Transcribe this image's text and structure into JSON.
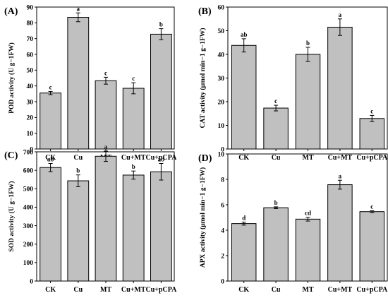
{
  "chart_data": [
    {
      "type": "bar",
      "panel_label": "(A)",
      "ylabel": "POD activity (U g−1FW)",
      "categories": [
        "CK",
        "Cu",
        "MT",
        "Cu+MT",
        "Cu+pCPA"
      ],
      "values": [
        35.5,
        83.5,
        43.3,
        38.5,
        72.8
      ],
      "errors": [
        1.0,
        2.8,
        2.2,
        3.5,
        3.5
      ],
      "significance": [
        "c",
        "a",
        "c",
        "c",
        "b"
      ],
      "ylim": [
        0,
        90
      ],
      "yticks": [
        0,
        10,
        20,
        30,
        40,
        50,
        60,
        70,
        80,
        90
      ]
    },
    {
      "type": "bar",
      "panel_label": "(B)",
      "ylabel": "CAT activity (μmol min−1 g−1FW)",
      "categories": [
        "CK",
        "Cu",
        "MT",
        "Cu+MT",
        "Cu+pCPA"
      ],
      "values": [
        43.8,
        17.3,
        40.0,
        51.5,
        12.9
      ],
      "errors": [
        2.8,
        1.2,
        3.0,
        3.5,
        1.3
      ],
      "significance": [
        "ab",
        "c",
        "b",
        "a",
        "c"
      ],
      "ylim": [
        0,
        60
      ],
      "yticks": [
        0,
        10,
        20,
        30,
        40,
        50,
        60
      ]
    },
    {
      "type": "bar",
      "panel_label": "(C)",
      "ylabel": "SOD activity (U g−1FW)",
      "categories": [
        "CK",
        "Cu",
        "MT",
        "Cu+MT",
        "Cu+pCPA"
      ],
      "values": [
        615,
        543,
        676,
        574,
        592
      ],
      "errors": [
        22,
        32,
        28,
        22,
        45
      ],
      "significance": [
        "ab",
        "b",
        "a",
        "b",
        "ab"
      ],
      "ylim": [
        0,
        700
      ],
      "yticks": [
        0,
        100,
        200,
        300,
        400,
        500,
        600,
        700
      ]
    },
    {
      "type": "bar",
      "panel_label": "(D)",
      "ylabel": "APX activity (μmol min−1 g−1FW)",
      "categories": [
        "CK",
        "Cu",
        "MT",
        "Cu+MT",
        "Cu+pCPA"
      ],
      "values": [
        4.52,
        5.77,
        4.87,
        7.58,
        5.46
      ],
      "errors": [
        0.12,
        0.07,
        0.15,
        0.35,
        0.07
      ],
      "significance": [
        "d",
        "b",
        "cd",
        "a",
        "c"
      ],
      "ylim": [
        0,
        10
      ],
      "yticks": [
        0,
        2,
        4,
        6,
        8,
        10
      ]
    }
  ]
}
